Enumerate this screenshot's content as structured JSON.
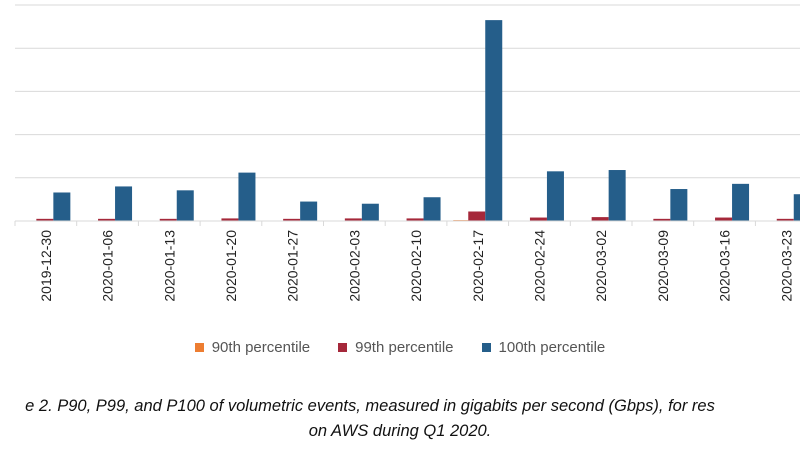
{
  "chart_data": {
    "type": "bar",
    "categories": [
      "2019-12-30",
      "2020-01-06",
      "2020-01-13",
      "2020-01-20",
      "2020-01-27",
      "2020-02-03",
      "2020-02-10",
      "2020-02-17",
      "2020-02-24",
      "2020-03-02",
      "2020-03-09",
      "2020-03-16",
      "2020-03-23"
    ],
    "series": [
      {
        "name": "90th percentile",
        "color": "#ED7D31",
        "values": [
          0.1,
          0.1,
          0.1,
          0.1,
          0.1,
          0.1,
          0.1,
          0.2,
          0.1,
          0.1,
          0.1,
          0.1,
          0.1
        ]
      },
      {
        "name": "99th percentile",
        "color": "#A5283A",
        "values": [
          0.5,
          0.5,
          0.5,
          0.6,
          0.5,
          0.6,
          0.6,
          2.2,
          0.8,
          0.9,
          0.5,
          0.8,
          0.5
        ]
      },
      {
        "name": "100th percentile",
        "color": "#255E8A",
        "values": [
          6.6,
          8.0,
          7.1,
          11.2,
          4.5,
          4.0,
          5.5,
          46.5,
          11.5,
          11.8,
          7.4,
          8.6,
          6.2
        ]
      }
    ],
    "ylim": [
      0,
      50
    ],
    "grid": true,
    "legend_position": "bottom"
  },
  "caption": {
    "line1": "e 2. P90, P99, and P100 of volumetric events, measured in gigabits per second (Gbps), for res",
    "line2": "on AWS during Q1 2020."
  }
}
